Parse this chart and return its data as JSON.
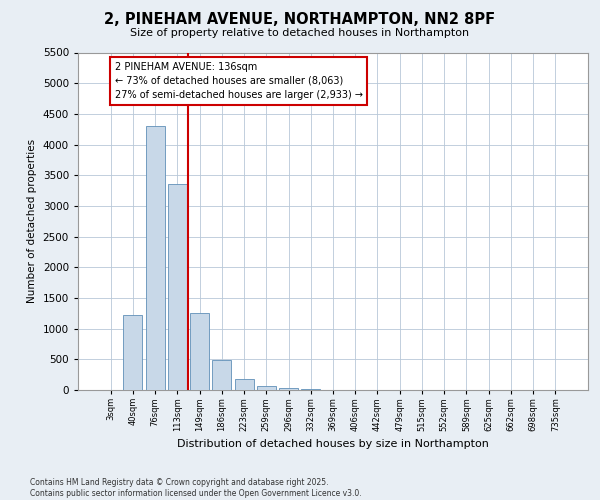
{
  "title_line1": "2, PINEHAM AVENUE, NORTHAMPTON, NN2 8PF",
  "title_line2": "Size of property relative to detached houses in Northampton",
  "xlabel": "Distribution of detached houses by size in Northampton",
  "ylabel": "Number of detached properties",
  "categories": [
    "3sqm",
    "40sqm",
    "76sqm",
    "113sqm",
    "149sqm",
    "186sqm",
    "223sqm",
    "259sqm",
    "296sqm",
    "332sqm",
    "369sqm",
    "406sqm",
    "442sqm",
    "479sqm",
    "515sqm",
    "552sqm",
    "589sqm",
    "625sqm",
    "662sqm",
    "698sqm",
    "735sqm"
  ],
  "values": [
    0,
    1220,
    4300,
    3350,
    1250,
    490,
    185,
    70,
    30,
    10,
    5,
    0,
    0,
    0,
    0,
    0,
    0,
    0,
    0,
    0,
    0
  ],
  "bar_color": "#c8d8e8",
  "bar_edge_color": "#6090b8",
  "vline_color": "#cc0000",
  "annotation_text": "2 PINEHAM AVENUE: 136sqm\n← 73% of detached houses are smaller (8,063)\n27% of semi-detached houses are larger (2,933) →",
  "annotation_box_color": "#ffffff",
  "annotation_box_edge_color": "#cc0000",
  "ylim": [
    0,
    5500
  ],
  "yticks": [
    0,
    500,
    1000,
    1500,
    2000,
    2500,
    3000,
    3500,
    4000,
    4500,
    5000,
    5500
  ],
  "footnote_line1": "Contains HM Land Registry data © Crown copyright and database right 2025.",
  "footnote_line2": "Contains public sector information licensed under the Open Government Licence v3.0.",
  "bg_color": "#e8eef4",
  "plot_bg_color": "#ffffff",
  "grid_color": "#b8c8d8"
}
